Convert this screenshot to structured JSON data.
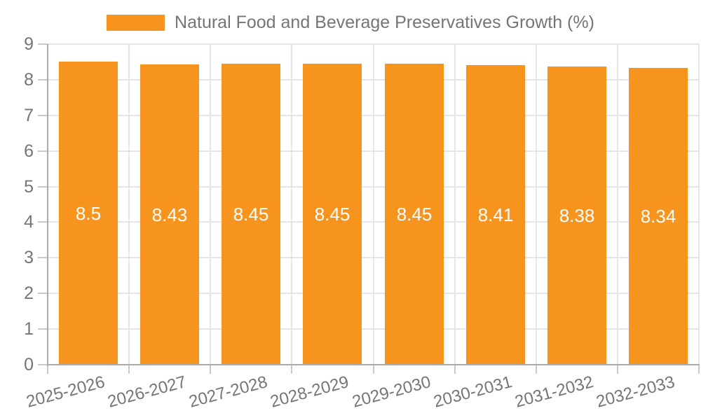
{
  "colors": {
    "bar": "#f7941e",
    "grid": "#e5e5e5",
    "axis": "#ababab",
    "tick": "#c9c9c9",
    "text": "#757575",
    "value_text": "#ffffff",
    "background": "#ffffff"
  },
  "legend": {
    "label": "Natural Food and Beverage Preservatives Growth (%)"
  },
  "chart_data": {
    "type": "bar",
    "title": "Natural Food and Beverage Preservatives Growth (%)",
    "categories": [
      "2025-2026",
      "2026-2027",
      "2027-2028",
      "2028-2029",
      "2029-2030",
      "2030-2031",
      "2031-2032",
      "2032-2033"
    ],
    "values": [
      8.5,
      8.43,
      8.45,
      8.45,
      8.45,
      8.41,
      8.38,
      8.34
    ],
    "xlabel": "",
    "ylabel": "",
    "ylim": [
      0,
      9
    ],
    "yticks": [
      0,
      1,
      2,
      3,
      4,
      5,
      6,
      7,
      8,
      9
    ],
    "grid": true,
    "legend_position": "top-center",
    "value_labels": "inside-middle"
  }
}
